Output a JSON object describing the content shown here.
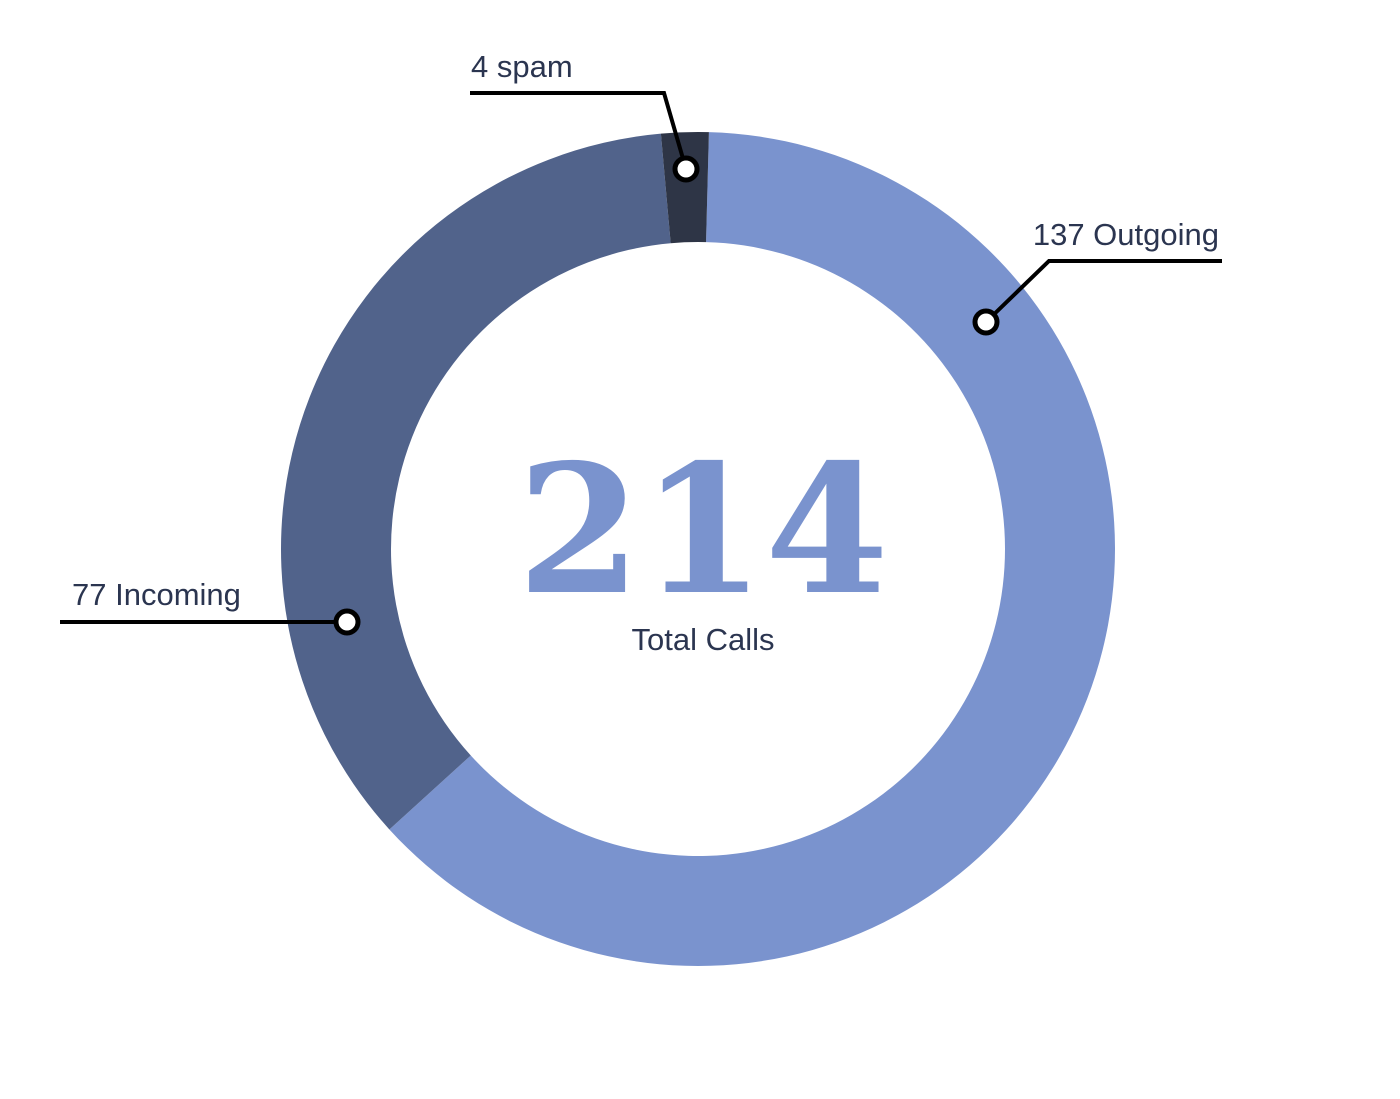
{
  "chart_data": {
    "type": "pie",
    "variant": "donut",
    "total": {
      "value": "214",
      "label": "Total Calls"
    },
    "slices": [
      {
        "label": "137 Outgoing",
        "value": 137,
        "color": "#7a93ce"
      },
      {
        "label": "77 Incoming",
        "value": 77,
        "color": "#51638b"
      },
      {
        "label": "4 spam",
        "value": 4,
        "color": "#2e3546"
      }
    ]
  },
  "colors": {
    "text": "#2b3550",
    "total_number": "#7a93ce",
    "callout_line": "#000000",
    "background": "#ffffff"
  }
}
